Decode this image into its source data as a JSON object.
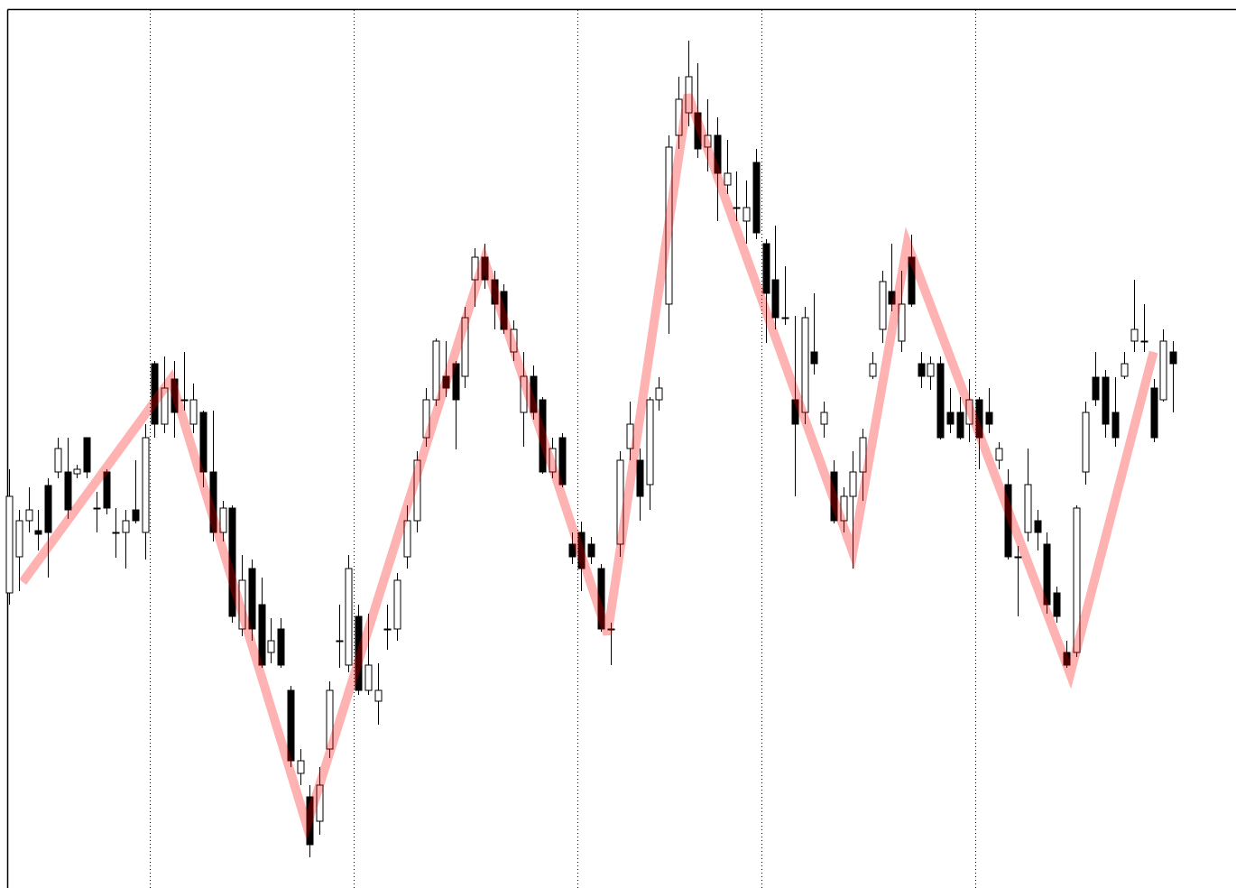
{
  "chart_data": [
    {
      "type": "candlestick",
      "x": [
        0,
        1,
        2,
        3,
        4,
        5,
        6,
        7,
        8,
        9,
        10,
        11,
        12,
        13,
        14,
        15,
        16,
        17,
        18,
        19,
        20,
        21,
        22,
        23,
        24,
        25,
        26,
        27,
        28,
        29,
        30,
        31,
        32,
        33,
        34,
        35,
        36,
        37,
        38,
        39,
        40,
        41,
        42,
        43,
        44,
        45,
        46,
        47,
        48,
        49,
        50,
        51,
        52,
        53,
        54,
        55,
        56,
        57,
        58,
        59,
        60,
        61,
        62,
        63,
        64,
        65,
        66,
        67,
        68,
        69,
        70,
        71,
        72,
        73,
        74,
        75,
        76,
        77,
        78,
        79,
        80,
        81,
        82,
        83,
        84,
        85,
        86,
        87,
        88,
        89,
        90,
        91,
        92,
        93,
        94,
        95,
        96,
        97,
        98,
        99,
        100,
        101,
        102,
        103,
        104,
        105,
        106,
        107,
        108,
        109,
        110,
        111,
        112,
        113,
        114,
        115,
        116,
        117,
        118,
        119,
        120
      ],
      "open": [
        327,
        367,
        407,
        396,
        446,
        461,
        461,
        459,
        499,
        421,
        461,
        394,
        394,
        419,
        394,
        581,
        514,
        564,
        541,
        514,
        527,
        461,
        394,
        421,
        287,
        354,
        314,
        261,
        287,
        219,
        127,
        101,
        74,
        154,
        274,
        247,
        301,
        219,
        207,
        287,
        287,
        367,
        407,
        499,
        541,
        567,
        581,
        567,
        674,
        699,
        674,
        661,
        594,
        527,
        567,
        541,
        461,
        499,
        381,
        394,
        381,
        354,
        287,
        381,
        487,
        474,
        447,
        541,
        647,
        834,
        859,
        859,
        821,
        834,
        779,
        754,
        739,
        804,
        714,
        674,
        632,
        541,
        527,
        594,
        514,
        461,
        407,
        434,
        461,
        567,
        619,
        661,
        606,
        699,
        581,
        567,
        581,
        527,
        527,
        514,
        541,
        527,
        474,
        447,
        367,
        394,
        407,
        381,
        327,
        261,
        261,
        461,
        566,
        566,
        527,
        567,
        606,
        606,
        554,
        541,
        594
      ],
      "high": [
        464,
        419,
        444,
        419,
        454,
        499,
        499,
        469,
        499,
        439,
        464,
        421,
        419,
        474,
        514,
        584,
        589,
        584,
        594,
        559,
        529,
        529,
        429,
        424,
        369,
        364,
        344,
        299,
        299,
        224,
        154,
        114,
        134,
        229,
        314,
        369,
        314,
        304,
        249,
        314,
        349,
        424,
        484,
        554,
        609,
        606,
        584,
        644,
        709,
        714,
        684,
        669,
        629,
        594,
        579,
        544,
        499,
        504,
        394,
        406,
        389,
        359,
        294,
        484,
        539,
        487,
        544,
        566,
        834,
        899,
        939,
        914,
        874,
        854,
        829,
        794,
        784,
        819,
        719,
        734,
        689,
        634,
        644,
        659,
        539,
        474,
        444,
        484,
        509,
        594,
        684,
        714,
        684,
        724,
        594,
        589,
        589,
        554,
        544,
        564,
        544,
        554,
        494,
        464,
        379,
        487,
        419,
        394,
        334,
        274,
        424,
        539,
        594,
        574,
        566,
        594,
        674,
        647,
        564,
        619,
        606
      ],
      "low": [
        314,
        329,
        394,
        374,
        344,
        454,
        409,
        454,
        454,
        394,
        414,
        366,
        354,
        404,
        364,
        499,
        504,
        499,
        529,
        504,
        444,
        384,
        384,
        294,
        279,
        274,
        244,
        249,
        244,
        134,
        114,
        34,
        59,
        144,
        244,
        239,
        214,
        214,
        181,
        264,
        274,
        354,
        394,
        489,
        534,
        544,
        486,
        554,
        644,
        664,
        619,
        614,
        584,
        489,
        519,
        459,
        454,
        444,
        359,
        329,
        359,
        284,
        247,
        367,
        474,
        407,
        419,
        529,
        614,
        819,
        844,
        809,
        794,
        739,
        769,
        739,
        714,
        719,
        604,
        619,
        624,
        434,
        514,
        569,
        499,
        404,
        394,
        354,
        429,
        564,
        604,
        639,
        594,
        644,
        554,
        552,
        497,
        504,
        497,
        494,
        464,
        504,
        464,
        364,
        301,
        384,
        374,
        304,
        294,
        244,
        256,
        447,
        534,
        499,
        489,
        564,
        594,
        594,
        494,
        539,
        527
      ],
      "close": [
        434,
        407,
        419,
        392,
        394,
        487,
        419,
        464,
        461,
        421,
        421,
        394,
        407,
        407,
        499,
        514,
        554,
        527,
        541,
        541,
        461,
        394,
        421,
        301,
        341,
        287,
        247,
        274,
        247,
        141,
        141,
        48,
        114,
        219,
        274,
        354,
        219,
        247,
        219,
        287,
        341,
        407,
        474,
        541,
        606,
        554,
        541,
        632,
        699,
        674,
        647,
        619,
        619,
        567,
        527,
        461,
        487,
        447,
        367,
        354,
        367,
        287,
        287,
        474,
        514,
        434,
        541,
        554,
        821,
        874,
        899,
        819,
        834,
        792,
        792,
        754,
        754,
        726,
        659,
        632,
        632,
        514,
        632,
        581,
        527,
        407,
        434,
        461,
        499,
        581,
        672,
        647,
        647,
        647,
        567,
        581,
        499,
        514,
        499,
        541,
        499,
        514,
        487,
        367,
        367,
        447,
        394,
        314,
        301,
        247,
        421,
        527,
        541,
        514,
        499,
        581,
        619,
        606,
        499,
        606,
        581
      ],
      "up_color": "#ffffff",
      "down_color": "#000000",
      "edge_color": "#000000",
      "xlim": [
        -0.19,
        126.5
      ],
      "ylim": [
        0,
        974
      ],
      "xticks": [
        14.5,
        35.5,
        58.6,
        77.6,
        99.6
      ],
      "grid": true
    },
    {
      "type": "line",
      "x": [
        1.4,
        16.7,
        30.7,
        49.0,
        61.7,
        70.0,
        87.0,
        92.6,
        109.4,
        118.0
      ],
      "values": [
        339,
        564,
        69,
        696,
        281,
        879,
        372,
        714,
        237,
        594
      ],
      "color": "rgba(255,0,0,0.3)"
    }
  ]
}
